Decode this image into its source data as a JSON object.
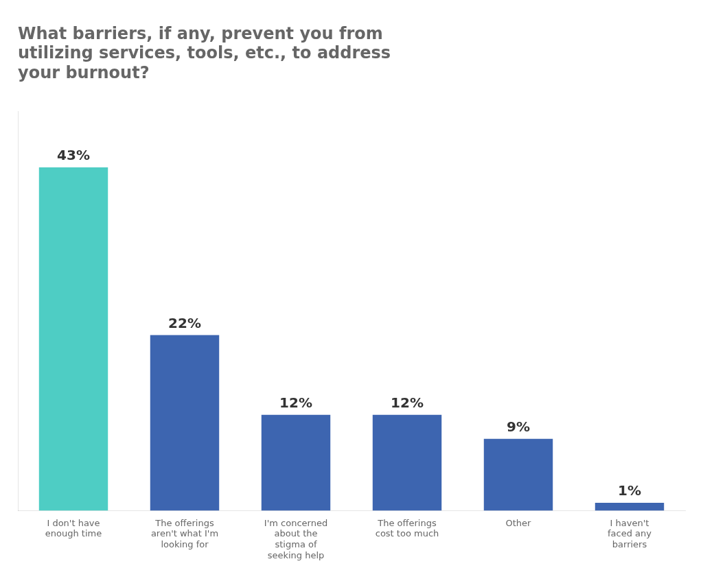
{
  "chart_data": {
    "type": "bar",
    "title": "What barriers, if any, prevent you from\nutilizing services, tools, etc., to address\nyour burnout?",
    "categories": [
      "I don't have\nenough time",
      "The offerings\naren't what I'm\nlooking for",
      "I'm concerned\nabout the\nstigma of\nseeking help",
      "The offerings\ncost too much",
      "Other",
      "I haven't\nfaced any\nbarriers"
    ],
    "values": [
      43,
      22,
      12,
      12,
      9,
      1
    ],
    "value_labels": [
      "43%",
      "22%",
      "12%",
      "12%",
      "9%",
      "1%"
    ],
    "colors": [
      "#4ecdc4",
      "#3d65b0",
      "#3d65b0",
      "#3d65b0",
      "#3d65b0",
      "#3d65b0"
    ],
    "ylim": [
      0,
      50
    ],
    "grid": false,
    "data_labels": true,
    "tick_labels": "x"
  }
}
